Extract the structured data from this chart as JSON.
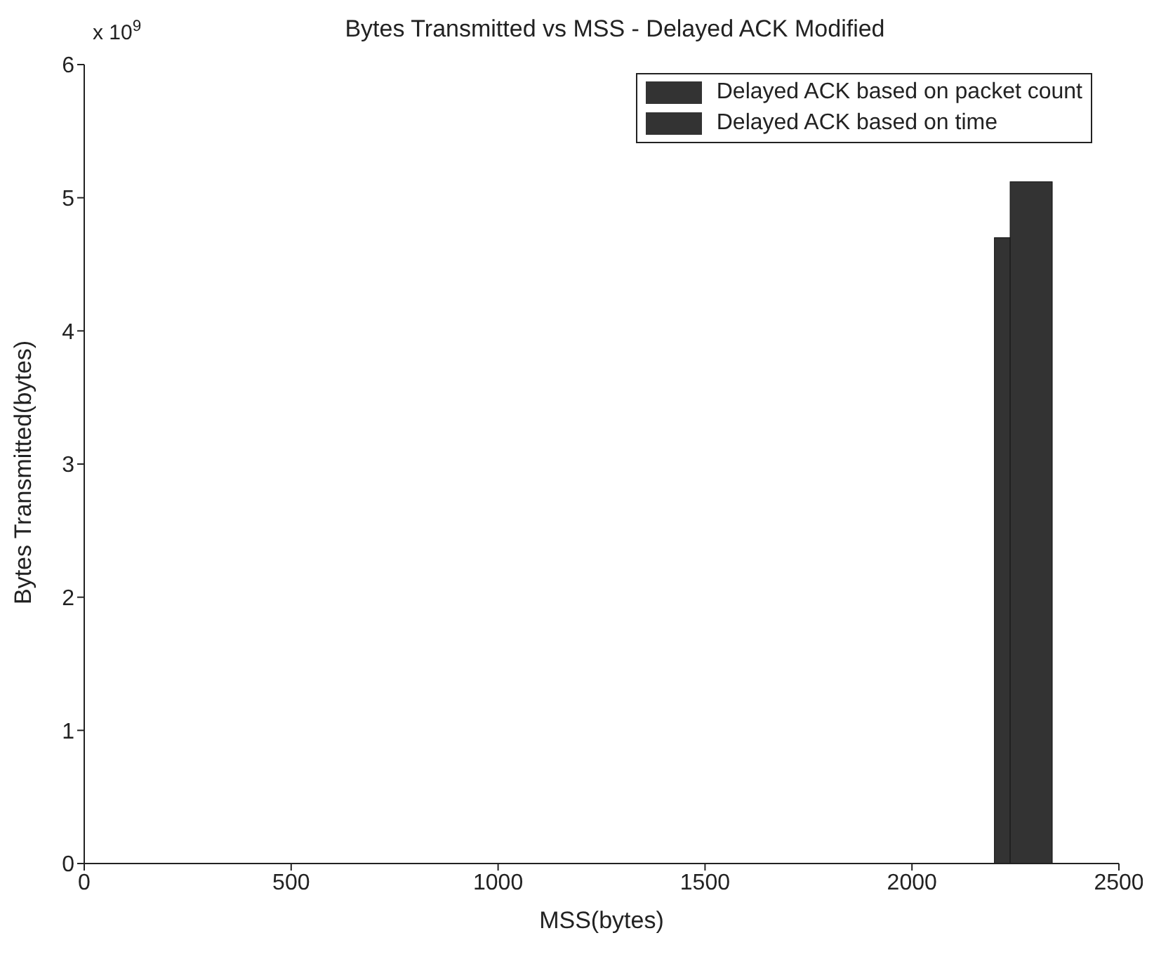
{
  "chart_data": {
    "type": "bar",
    "title": "Bytes Transmitted vs MSS - Delayed ACK Modified",
    "xlabel": "MSS(bytes)",
    "ylabel": "Bytes Transmitted(bytes)",
    "annotations": [
      "x 10$^{9}$"
    ],
    "series": [
      {
        "name": "Delayed ACK based on packet count",
        "color": "#333333",
        "x": [
          2250
        ],
        "values": [
          4.7
        ]
      },
      {
        "name": "Delayed ACK based on time",
        "color": "#333333",
        "x": [
          2288
        ],
        "values": [
          5.12
        ]
      }
    ],
    "xlim": [
      0,
      2500
    ],
    "xticks": [
      0,
      500,
      1000,
      1500,
      2000,
      2500
    ],
    "ylim": [
      0,
      6
    ],
    "yticks": [
      0,
      1,
      2,
      3,
      4,
      5,
      6
    ],
    "grid": false,
    "legend": "top right"
  }
}
